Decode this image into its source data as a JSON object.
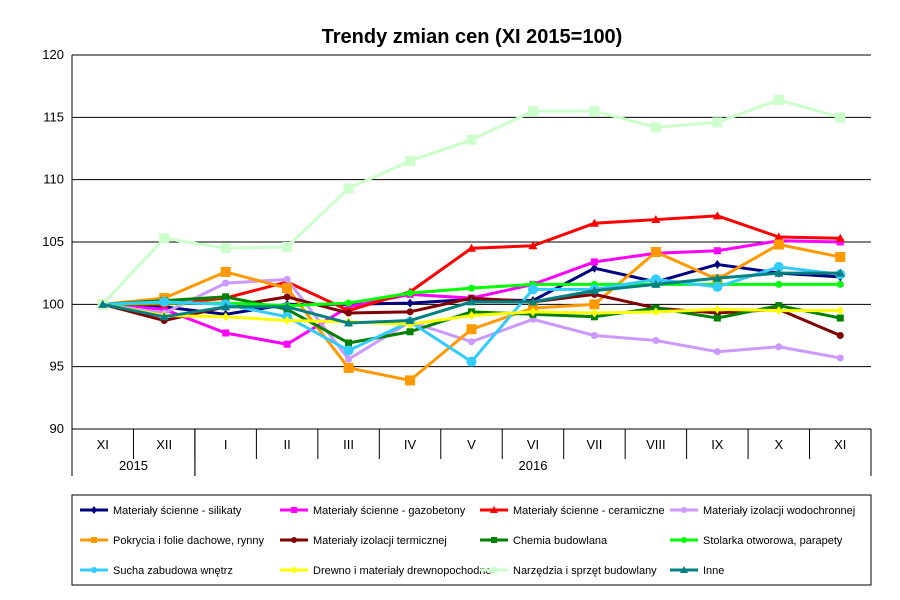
{
  "chart_data": {
    "type": "line",
    "title": "Trendy zmian cen (XI 2015=100)",
    "ylim": [
      90,
      120
    ],
    "yticks": [
      90,
      95,
      100,
      105,
      110,
      115,
      120
    ],
    "ytick_labels": [
      "90",
      "95",
      "100",
      "105",
      "110",
      "115",
      "120"
    ],
    "categories": [
      "XI",
      "XII",
      "I",
      "II",
      "III",
      "IV",
      "V",
      "VI",
      "VII",
      "VIII",
      "IX",
      "X",
      "XI"
    ],
    "year_groups": [
      {
        "label": "2015",
        "from": 0,
        "to": 1
      },
      {
        "label": "2016",
        "from": 2,
        "to": 12
      }
    ],
    "grid": {
      "horizontal": true,
      "vertical": false
    },
    "legend_position": "bottom",
    "series": [
      {
        "name": "Materiały ścienne - silikaty",
        "color": "#000080",
        "marker": "diamond",
        "values": [
          100,
          99.8,
          99.2,
          100.0,
          100.0,
          100.1,
          100.4,
          100.3,
          102.9,
          101.8,
          103.2,
          102.5,
          102.2
        ]
      },
      {
        "name": "Materiały ścienne - gazobetony",
        "color": "#ff00ff",
        "marker": "square",
        "values": [
          100,
          99.6,
          97.7,
          96.8,
          99.8,
          100.8,
          100.5,
          101.6,
          103.4,
          104.1,
          104.3,
          105.1,
          105.0
        ]
      },
      {
        "name": "Materiały ścienne - ceramiczne",
        "color": "#ff0000",
        "marker": "triangle",
        "values": [
          100,
          100.0,
          100.5,
          101.8,
          99.5,
          101.0,
          104.5,
          104.7,
          106.5,
          106.8,
          107.1,
          105.4,
          105.3
        ]
      },
      {
        "name": "Materiały izolacji wodochronnej",
        "color": "#cc99ff",
        "marker": "circle",
        "values": [
          100,
          99.3,
          101.7,
          102.0,
          95.6,
          98.6,
          97.0,
          98.8,
          97.5,
          97.1,
          96.2,
          96.6,
          95.7
        ]
      },
      {
        "name": "Pokrycia i folie dachowe, rynny",
        "color": "#ff9900",
        "marker": "square",
        "values": [
          100,
          100.5,
          102.6,
          101.3,
          94.9,
          93.9,
          98.0,
          99.7,
          100.0,
          104.2,
          102.0,
          104.8,
          103.8
        ]
      },
      {
        "name": "Materiały izolacji termicznej",
        "color": "#800000",
        "marker": "circle",
        "values": [
          100,
          98.7,
          99.8,
          100.6,
          99.3,
          99.4,
          100.5,
          100.2,
          100.8,
          99.7,
          99.3,
          99.6,
          97.5
        ]
      },
      {
        "name": "Chemia budowlana",
        "color": "#008000",
        "marker": "square",
        "values": [
          100,
          100.3,
          100.6,
          99.6,
          96.9,
          97.8,
          99.4,
          99.2,
          99.0,
          99.7,
          98.9,
          99.9,
          98.9
        ]
      },
      {
        "name": "Stolarka otworowa, parapety",
        "color": "#00ff00",
        "marker": "circle",
        "values": [
          100,
          100.1,
          100.1,
          99.9,
          100.1,
          100.9,
          101.3,
          101.6,
          101.6,
          101.6,
          101.6,
          101.6,
          101.6
        ]
      },
      {
        "name": "Sucha zabudowa wnętrz",
        "color": "#33ccff",
        "marker": "circle",
        "values": [
          100,
          100.2,
          100.0,
          99.0,
          96.3,
          98.6,
          95.4,
          101.2,
          101.2,
          102.0,
          101.4,
          103.0,
          102.4
        ]
      },
      {
        "name": "Drewno i materiały drewnopochodne",
        "color": "#ffff00",
        "marker": "diamond",
        "values": [
          100,
          99.1,
          99.0,
          98.7,
          98.6,
          98.4,
          99.1,
          99.4,
          99.3,
          99.4,
          99.6,
          99.5,
          99.5
        ]
      },
      {
        "name": "Narzędzia i sprzęt budowlany",
        "color": "#ccffcc",
        "marker": "square",
        "values": [
          100,
          105.3,
          104.5,
          104.6,
          109.3,
          111.5,
          113.2,
          115.5,
          115.5,
          114.2,
          114.6,
          116.4,
          115.0
        ]
      },
      {
        "name": "Inne",
        "color": "#008080",
        "marker": "triangle",
        "values": [
          100,
          99.0,
          99.8,
          99.8,
          98.5,
          98.7,
          100.2,
          100.2,
          101.1,
          101.6,
          102.1,
          102.5,
          102.5
        ]
      }
    ]
  }
}
